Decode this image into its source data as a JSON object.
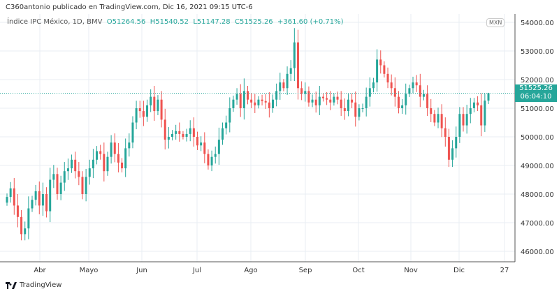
{
  "attribution": "C360antonio publicado en TradingView.com, Dic 16, 2021 09:15 UTC-6",
  "legend": {
    "symbol": "Índice IPC México, 1D, BMV",
    "open": "O51264.56",
    "high": "H51540.52",
    "low": "L51147.28",
    "close": "C51525.26",
    "change": "+361.60 (+0.71%)"
  },
  "currency": "MXN",
  "last_price": "51525.26",
  "countdown": "06:04:10",
  "brand": "TradingView",
  "colors": {
    "up": "#26a69a",
    "down": "#ef5350",
    "grid": "#e8eef3"
  },
  "chart_data": {
    "type": "candlestick",
    "title": "Índice IPC México, 1D, BMV",
    "ylim": [
      45700,
      54500
    ],
    "y_ticks": [
      "46000.00",
      "47000.00",
      "48000.00",
      "49000.00",
      "50000.00",
      "51000.00",
      "52000.00",
      "53000.00",
      "54000.00"
    ],
    "x_ticks": [
      "Abr",
      "Mayo",
      "Jun",
      "Jul",
      "Ago",
      "Sep",
      "Oct",
      "Nov",
      "Dic",
      "27"
    ],
    "first_open": 47700,
    "closes": [
      47900,
      48200,
      47600,
      47200,
      46600,
      46800,
      47500,
      47800,
      48100,
      47600,
      48000,
      47400,
      48500,
      48700,
      48000,
      48400,
      48800,
      48900,
      49200,
      48800,
      48600,
      48000,
      48600,
      48900,
      49200,
      49500,
      49400,
      48800,
      49300,
      49800,
      49400,
      49100,
      48900,
      49600,
      49800,
      50500,
      51000,
      50900,
      50700,
      51100,
      51400,
      50900,
      51300,
      50600,
      49900,
      50000,
      50100,
      50200,
      50100,
      50000,
      50100,
      50300,
      50000,
      49700,
      49800,
      49400,
      49000,
      49300,
      49400,
      49900,
      50300,
      50500,
      51000,
      51300,
      51500,
      51000,
      51600,
      51300,
      51200,
      51100,
      51300,
      51250,
      51200,
      51000,
      51300,
      51600,
      51900,
      51700,
      52200,
      52400,
      53300,
      51700,
      51500,
      51600,
      51200,
      51300,
      51100,
      51400,
      51350,
      51300,
      51200,
      51400,
      51300,
      51000,
      50900,
      51300,
      51200,
      50700,
      51000,
      51000,
      51400,
      51700,
      51900,
      52700,
      52500,
      52200,
      51900,
      51700,
      51400,
      51000,
      51100,
      51500,
      51700,
      51900,
      51800,
      51400,
      51500,
      51000,
      50800,
      50500,
      50800,
      50300,
      50000,
      49200,
      49600,
      50000,
      50800,
      50400,
      50800,
      51000,
      51200,
      51100,
      50400,
      51264.56
    ],
    "last_candle": {
      "open": 51264.56,
      "high": 51540.52,
      "low": 51147.28,
      "close": 51525.26
    }
  }
}
